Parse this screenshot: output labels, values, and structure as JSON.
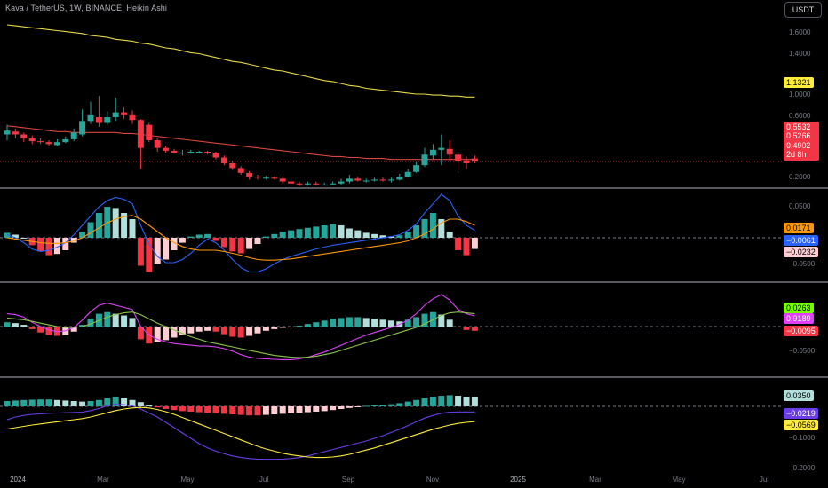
{
  "header": {
    "title": "Kava / TetherUS, 1W, BINANCE, Heikin Ashi"
  },
  "toolbar": {
    "currency_label": "USDT"
  },
  "price_axis": {
    "ticks": [
      "1.6000",
      "1.4000",
      "1.0000",
      "0.6000",
      "0.2000"
    ]
  },
  "badges": {
    "ma_value": "1.1321",
    "macd1_a": "0.0171",
    "macd1_b": "−0.0061",
    "macd1_c": "−0.0232",
    "macd2_a": "0.0263",
    "macd2_b": "0.9189",
    "macd2_c": "−0.0095",
    "macd3_a": "0.0350",
    "macd3_b": "−0.0219",
    "macd3_c": "−0.0569"
  },
  "price_stack": {
    "line1": "0.5532",
    "line2": "0.5266",
    "line3": "0.4902",
    "line4": "2d 8h"
  },
  "indicator_axis": {
    "p1_top": "0.0500",
    "p1_bot": "−0.0500",
    "p2_bot": "−0.0500",
    "p3_bot": "−0.1000",
    "p3_bot2": "−0.2000"
  },
  "time_axis": {
    "labels": [
      "2024",
      "Mar",
      "May",
      "Jul",
      "Sep",
      "Nov",
      "2025",
      "Mar",
      "May",
      "Jul"
    ]
  },
  "colors": {
    "up": "#26a69a",
    "down": "#f23645",
    "up_light": "#b2dfdb",
    "down_light": "#ffcdd2",
    "ma_yellow": "#e6d84a",
    "ma_red": "#d8463c",
    "blue": "#2962ff",
    "orange": "#ff9800",
    "magenta": "#e040fb",
    "green": "#8bc34a",
    "purple": "#6a3de8",
    "yellow": "#ffeb3b"
  },
  "chart_data": {
    "type": "candlestick",
    "candles": [
      {
        "o": 0.74,
        "c": 0.78,
        "h": 0.84,
        "l": 0.68
      },
      {
        "o": 0.77,
        "c": 0.74,
        "h": 0.8,
        "l": 0.7
      },
      {
        "o": 0.74,
        "c": 0.7,
        "h": 0.76,
        "l": 0.66
      },
      {
        "o": 0.7,
        "c": 0.67,
        "h": 0.73,
        "l": 0.64
      },
      {
        "o": 0.67,
        "c": 0.66,
        "h": 0.7,
        "l": 0.64
      },
      {
        "o": 0.66,
        "c": 0.64,
        "h": 0.68,
        "l": 0.62
      },
      {
        "o": 0.63,
        "c": 0.66,
        "h": 0.69,
        "l": 0.62
      },
      {
        "o": 0.66,
        "c": 0.69,
        "h": 0.72,
        "l": 0.65
      },
      {
        "o": 0.69,
        "c": 0.76,
        "h": 0.8,
        "l": 0.67
      },
      {
        "o": 0.74,
        "c": 0.88,
        "h": 1.0,
        "l": 0.72
      },
      {
        "o": 0.88,
        "c": 0.94,
        "h": 1.08,
        "l": 0.85
      },
      {
        "o": 0.92,
        "c": 0.86,
        "h": 1.14,
        "l": 0.82
      },
      {
        "o": 0.86,
        "c": 0.92,
        "h": 0.98,
        "l": 0.84
      },
      {
        "o": 0.92,
        "c": 0.97,
        "h": 1.12,
        "l": 0.88
      },
      {
        "o": 0.97,
        "c": 0.94,
        "h": 1.02,
        "l": 0.9
      },
      {
        "o": 0.94,
        "c": 0.89,
        "h": 0.99,
        "l": 0.85
      },
      {
        "o": 0.89,
        "c": 0.6,
        "h": 0.9,
        "l": 0.38
      },
      {
        "o": 0.84,
        "c": 0.68,
        "h": 0.86,
        "l": 0.66
      },
      {
        "o": 0.68,
        "c": 0.6,
        "h": 0.7,
        "l": 0.56
      },
      {
        "o": 0.6,
        "c": 0.57,
        "h": 0.62,
        "l": 0.55
      },
      {
        "o": 0.57,
        "c": 0.55,
        "h": 0.59,
        "l": 0.54
      },
      {
        "o": 0.55,
        "c": 0.55,
        "h": 0.58,
        "l": 0.52
      },
      {
        "o": 0.55,
        "c": 0.56,
        "h": 0.58,
        "l": 0.54
      },
      {
        "o": 0.56,
        "c": 0.56,
        "h": 0.57,
        "l": 0.54
      },
      {
        "o": 0.56,
        "c": 0.55,
        "h": 0.57,
        "l": 0.53
      },
      {
        "o": 0.55,
        "c": 0.5,
        "h": 0.56,
        "l": 0.48
      },
      {
        "o": 0.5,
        "c": 0.44,
        "h": 0.52,
        "l": 0.42
      },
      {
        "o": 0.44,
        "c": 0.39,
        "h": 0.46,
        "l": 0.37
      },
      {
        "o": 0.39,
        "c": 0.34,
        "h": 0.41,
        "l": 0.32
      },
      {
        "o": 0.34,
        "c": 0.3,
        "h": 0.36,
        "l": 0.27
      },
      {
        "o": 0.3,
        "c": 0.29,
        "h": 0.32,
        "l": 0.27
      },
      {
        "o": 0.29,
        "c": 0.29,
        "h": 0.31,
        "l": 0.27
      },
      {
        "o": 0.29,
        "c": 0.28,
        "h": 0.3,
        "l": 0.27
      },
      {
        "o": 0.28,
        "c": 0.25,
        "h": 0.3,
        "l": 0.23
      },
      {
        "o": 0.25,
        "c": 0.23,
        "h": 0.27,
        "l": 0.21
      },
      {
        "o": 0.23,
        "c": 0.22,
        "h": 0.25,
        "l": 0.2
      },
      {
        "o": 0.22,
        "c": 0.23,
        "h": 0.25,
        "l": 0.21
      },
      {
        "o": 0.23,
        "c": 0.22,
        "h": 0.25,
        "l": 0.21
      },
      {
        "o": 0.22,
        "c": 0.22,
        "h": 0.24,
        "l": 0.21
      },
      {
        "o": 0.22,
        "c": 0.23,
        "h": 0.25,
        "l": 0.22
      },
      {
        "o": 0.23,
        "c": 0.25,
        "h": 0.28,
        "l": 0.22
      },
      {
        "o": 0.25,
        "c": 0.28,
        "h": 0.32,
        "l": 0.23
      },
      {
        "o": 0.28,
        "c": 0.26,
        "h": 0.3,
        "l": 0.25
      },
      {
        "o": 0.26,
        "c": 0.26,
        "h": 0.28,
        "l": 0.24
      },
      {
        "o": 0.26,
        "c": 0.27,
        "h": 0.29,
        "l": 0.25
      },
      {
        "o": 0.27,
        "c": 0.26,
        "h": 0.29,
        "l": 0.25
      },
      {
        "o": 0.26,
        "c": 0.27,
        "h": 0.29,
        "l": 0.24
      },
      {
        "o": 0.27,
        "c": 0.3,
        "h": 0.33,
        "l": 0.26
      },
      {
        "o": 0.3,
        "c": 0.35,
        "h": 0.38,
        "l": 0.29
      },
      {
        "o": 0.35,
        "c": 0.42,
        "h": 0.45,
        "l": 0.34
      },
      {
        "o": 0.42,
        "c": 0.53,
        "h": 0.6,
        "l": 0.4
      },
      {
        "o": 0.52,
        "c": 0.58,
        "h": 0.64,
        "l": 0.48
      },
      {
        "o": 0.58,
        "c": 0.6,
        "h": 0.74,
        "l": 0.42
      },
      {
        "o": 0.59,
        "c": 0.53,
        "h": 0.68,
        "l": 0.46
      },
      {
        "o": 0.53,
        "c": 0.46,
        "h": 0.56,
        "l": 0.34
      },
      {
        "o": 0.47,
        "c": 0.44,
        "h": 0.51,
        "l": 0.38
      },
      {
        "o": 0.49,
        "c": 0.46,
        "h": 0.52,
        "l": 0.44
      }
    ],
    "ma_red": [
      0.83,
      0.82,
      0.81,
      0.8,
      0.79,
      0.78,
      0.77,
      0.77,
      0.76,
      0.76,
      0.76,
      0.76,
      0.76,
      0.76,
      0.75,
      0.75,
      0.74,
      0.73,
      0.72,
      0.71,
      0.7,
      0.69,
      0.68,
      0.67,
      0.66,
      0.65,
      0.64,
      0.63,
      0.62,
      0.61,
      0.6,
      0.59,
      0.58,
      0.57,
      0.56,
      0.55,
      0.54,
      0.53,
      0.52,
      0.51,
      0.51,
      0.5,
      0.5,
      0.49,
      0.49,
      0.49,
      0.48,
      0.48,
      0.48,
      0.48,
      0.48,
      0.48,
      0.48,
      0.48,
      0.48,
      0.48,
      0.48
    ],
    "ma_yellow": [
      1.88,
      1.87,
      1.86,
      1.85,
      1.84,
      1.83,
      1.82,
      1.81,
      1.8,
      1.79,
      1.77,
      1.76,
      1.75,
      1.73,
      1.72,
      1.71,
      1.69,
      1.68,
      1.66,
      1.64,
      1.63,
      1.61,
      1.59,
      1.58,
      1.56,
      1.54,
      1.52,
      1.5,
      1.49,
      1.47,
      1.45,
      1.43,
      1.41,
      1.4,
      1.38,
      1.36,
      1.34,
      1.32,
      1.3,
      1.29,
      1.27,
      1.25,
      1.24,
      1.22,
      1.21,
      1.2,
      1.19,
      1.18,
      1.17,
      1.16,
      1.16,
      1.15,
      1.15,
      1.14,
      1.14,
      1.13,
      1.13
    ],
    "hist1": [
      0.008,
      0.005,
      0.0,
      -0.012,
      -0.022,
      -0.028,
      -0.026,
      -0.02,
      -0.008,
      0.01,
      0.025,
      0.04,
      0.05,
      0.048,
      0.04,
      0.03,
      -0.045,
      -0.055,
      -0.042,
      -0.035,
      -0.02,
      -0.008,
      0.002,
      0.005,
      0.006,
      -0.005,
      -0.015,
      -0.022,
      -0.025,
      -0.018,
      -0.01,
      0.002,
      0.006,
      0.01,
      0.012,
      0.014,
      0.016,
      0.018,
      0.02,
      0.022,
      0.02,
      0.015,
      0.012,
      0.008,
      0.006,
      0.004,
      0.002,
      0.004,
      0.01,
      0.02,
      0.03,
      0.04,
      0.03,
      0.01,
      -0.02,
      -0.028,
      -0.018
    ],
    "macd1_blue": [
      0.005,
      0.0,
      -0.008,
      -0.018,
      -0.022,
      -0.02,
      -0.015,
      -0.008,
      0.005,
      0.02,
      0.035,
      0.05,
      0.06,
      0.065,
      0.062,
      0.055,
      0.02,
      -0.01,
      -0.03,
      -0.04,
      -0.04,
      -0.035,
      -0.025,
      -0.012,
      -0.002,
      -0.008,
      -0.02,
      -0.035,
      -0.048,
      -0.055,
      -0.055,
      -0.05,
      -0.042,
      -0.035,
      -0.03,
      -0.026,
      -0.022,
      -0.018,
      -0.015,
      -0.012,
      -0.01,
      -0.008,
      -0.006,
      -0.004,
      -0.002,
      0.0,
      0.002,
      0.005,
      0.012,
      0.022,
      0.04,
      0.055,
      0.07,
      0.06,
      0.035,
      0.02,
      0.012
    ],
    "macd1_orange": [
      0.0,
      -0.002,
      -0.004,
      -0.006,
      -0.008,
      -0.009,
      -0.009,
      -0.008,
      -0.005,
      0.0,
      0.008,
      0.016,
      0.024,
      0.03,
      0.034,
      0.036,
      0.03,
      0.02,
      0.01,
      0.0,
      -0.008,
      -0.014,
      -0.018,
      -0.02,
      -0.02,
      -0.02,
      -0.022,
      -0.025,
      -0.028,
      -0.032,
      -0.035,
      -0.036,
      -0.036,
      -0.035,
      -0.034,
      -0.032,
      -0.03,
      -0.028,
      -0.026,
      -0.024,
      -0.022,
      -0.02,
      -0.018,
      -0.016,
      -0.014,
      -0.012,
      -0.01,
      -0.008,
      -0.005,
      0.0,
      0.006,
      0.014,
      0.024,
      0.03,
      0.03,
      0.026,
      0.02
    ],
    "hist2": [
      0.01,
      0.008,
      0.004,
      -0.006,
      -0.014,
      -0.02,
      -0.022,
      -0.02,
      -0.012,
      0.004,
      0.018,
      0.03,
      0.034,
      0.03,
      0.026,
      0.02,
      -0.03,
      -0.04,
      -0.036,
      -0.032,
      -0.026,
      -0.02,
      -0.016,
      -0.012,
      -0.01,
      -0.012,
      -0.018,
      -0.024,
      -0.026,
      -0.022,
      -0.016,
      -0.01,
      -0.006,
      -0.003,
      -0.002,
      0.002,
      0.006,
      0.01,
      0.014,
      0.018,
      0.02,
      0.022,
      0.022,
      0.02,
      0.018,
      0.016,
      0.014,
      0.012,
      0.016,
      0.022,
      0.03,
      0.034,
      0.028,
      0.016,
      -0.002,
      -0.008,
      -0.01
    ],
    "macd2_magenta": [
      0.03,
      0.028,
      0.022,
      0.01,
      0.0,
      -0.008,
      -0.012,
      -0.01,
      -0.002,
      0.015,
      0.035,
      0.05,
      0.055,
      0.05,
      0.045,
      0.04,
      0.0,
      -0.02,
      -0.03,
      -0.036,
      -0.04,
      -0.042,
      -0.044,
      -0.046,
      -0.046,
      -0.048,
      -0.052,
      -0.058,
      -0.066,
      -0.072,
      -0.075,
      -0.076,
      -0.077,
      -0.078,
      -0.078,
      -0.076,
      -0.072,
      -0.066,
      -0.06,
      -0.052,
      -0.044,
      -0.036,
      -0.028,
      -0.02,
      -0.014,
      -0.008,
      -0.002,
      0.005,
      0.015,
      0.03,
      0.05,
      0.065,
      0.075,
      0.062,
      0.04,
      0.03,
      0.025
    ],
    "macd2_green": [
      0.02,
      0.018,
      0.016,
      0.012,
      0.008,
      0.004,
      0.0,
      -0.002,
      -0.002,
      0.0,
      0.006,
      0.014,
      0.022,
      0.028,
      0.032,
      0.034,
      0.028,
      0.018,
      0.008,
      0.0,
      -0.008,
      -0.016,
      -0.024,
      -0.03,
      -0.036,
      -0.04,
      -0.044,
      -0.048,
      -0.052,
      -0.056,
      -0.06,
      -0.064,
      -0.068,
      -0.07,
      -0.072,
      -0.073,
      -0.072,
      -0.07,
      -0.066,
      -0.062,
      -0.056,
      -0.05,
      -0.044,
      -0.038,
      -0.032,
      -0.026,
      -0.02,
      -0.014,
      -0.008,
      -0.002,
      0.006,
      0.016,
      0.026,
      0.032,
      0.034,
      0.032,
      0.03
    ],
    "hist3": [
      0.02,
      0.022,
      0.024,
      0.025,
      0.026,
      0.026,
      0.024,
      0.022,
      0.02,
      0.018,
      0.02,
      0.024,
      0.03,
      0.034,
      0.03,
      0.024,
      0.016,
      0.004,
      -0.004,
      -0.01,
      -0.014,
      -0.018,
      -0.02,
      -0.022,
      -0.024,
      -0.026,
      -0.028,
      -0.03,
      -0.032,
      -0.034,
      -0.034,
      -0.032,
      -0.03,
      -0.028,
      -0.026,
      -0.024,
      -0.022,
      -0.02,
      -0.018,
      -0.014,
      -0.01,
      -0.006,
      -0.002,
      0.002,
      0.004,
      0.006,
      0.008,
      0.012,
      0.018,
      0.024,
      0.03,
      0.036,
      0.04,
      0.042,
      0.04,
      0.036,
      0.034
    ],
    "macd3_purple": [
      -0.05,
      -0.04,
      -0.034,
      -0.03,
      -0.028,
      -0.026,
      -0.025,
      -0.024,
      -0.023,
      -0.022,
      -0.016,
      -0.008,
      0.002,
      0.008,
      0.006,
      0.002,
      -0.01,
      -0.025,
      -0.04,
      -0.06,
      -0.08,
      -0.1,
      -0.12,
      -0.14,
      -0.156,
      -0.168,
      -0.178,
      -0.186,
      -0.192,
      -0.196,
      -0.198,
      -0.199,
      -0.199,
      -0.198,
      -0.196,
      -0.192,
      -0.186,
      -0.178,
      -0.17,
      -0.162,
      -0.154,
      -0.146,
      -0.138,
      -0.13,
      -0.12,
      -0.11,
      -0.098,
      -0.086,
      -0.072,
      -0.058,
      -0.044,
      -0.034,
      -0.026,
      -0.022,
      -0.021,
      -0.021,
      -0.021
    ],
    "macd3_yellow": [
      -0.085,
      -0.08,
      -0.075,
      -0.07,
      -0.066,
      -0.062,
      -0.058,
      -0.054,
      -0.05,
      -0.046,
      -0.04,
      -0.032,
      -0.024,
      -0.016,
      -0.01,
      -0.006,
      -0.004,
      -0.006,
      -0.012,
      -0.02,
      -0.03,
      -0.042,
      -0.054,
      -0.066,
      -0.078,
      -0.09,
      -0.102,
      -0.114,
      -0.126,
      -0.138,
      -0.15,
      -0.16,
      -0.168,
      -0.176,
      -0.182,
      -0.186,
      -0.19,
      -0.192,
      -0.192,
      -0.19,
      -0.186,
      -0.18,
      -0.172,
      -0.164,
      -0.156,
      -0.146,
      -0.136,
      -0.126,
      -0.116,
      -0.106,
      -0.096,
      -0.086,
      -0.078,
      -0.07,
      -0.064,
      -0.06,
      -0.057
    ]
  }
}
